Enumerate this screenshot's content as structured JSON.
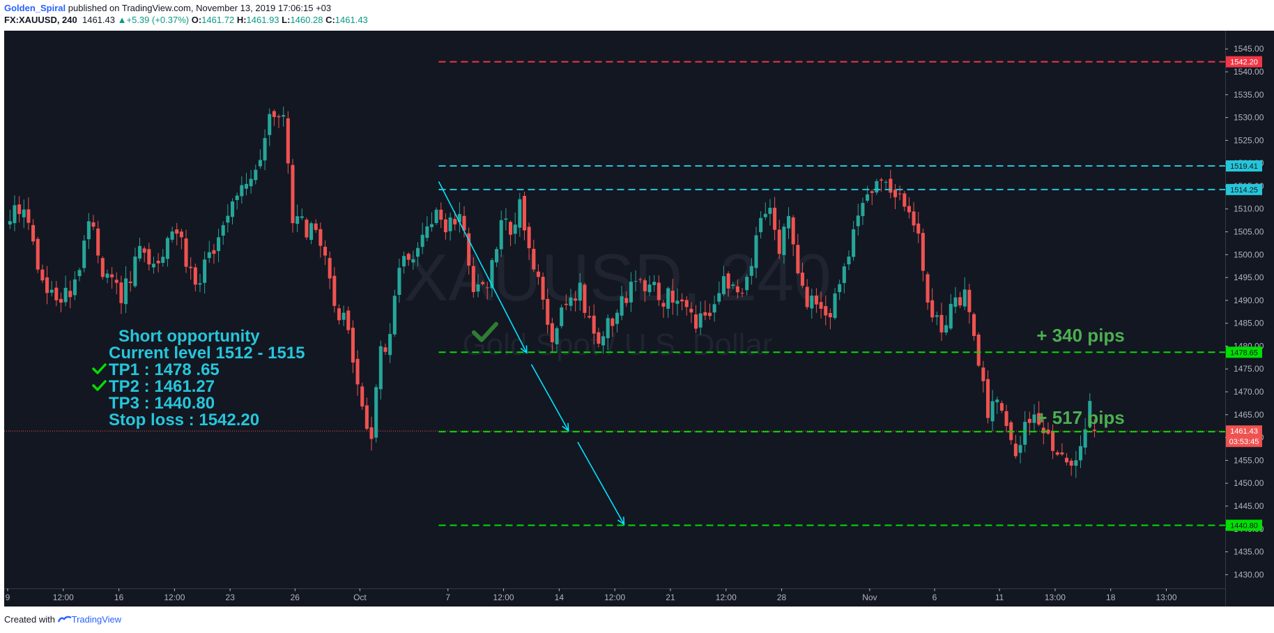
{
  "header": {
    "author": "Golden_Spiral",
    "published_text": "published on TradingView.com, November 13, 2019 17:06:15 +03",
    "symbol": "FX:XAUUSD, 240",
    "last": "1461.43",
    "change": "+5.39 (+0.37%)",
    "o_label": "O:",
    "o_value": "1461.72",
    "h_label": "H:",
    "h_value": "1461.93",
    "l_label": "L:",
    "l_value": "1460.28",
    "c_label": "C:",
    "c_value": "1461.43"
  },
  "footer": {
    "created_with": "Created with",
    "brand": "TradingView"
  },
  "colors": {
    "background": "#131722",
    "bull": "#26a69a",
    "bear": "#ef5350",
    "stop": "#f23645",
    "entry": "#26c6da",
    "target": "#00e000",
    "annotation_text": "#26c6da",
    "pips_text": "#4caf50",
    "arrow": "#00e5ff"
  },
  "chart_data": {
    "type": "candlestick",
    "symbol": "XAUUSD",
    "timeframe": "240",
    "watermark_symbol": "XAUUSD, 240",
    "watermark_name": "Gold Spot / U.S. Dollar",
    "ylim": [
      1427,
      1549
    ],
    "y_ticks": [
      1430,
      1435,
      1440,
      1445,
      1450,
      1455,
      1460,
      1465,
      1470,
      1475,
      1480,
      1485,
      1490,
      1495,
      1500,
      1505,
      1510,
      1515,
      1520,
      1525,
      1530,
      1535,
      1540,
      1545
    ],
    "x_ticks": [
      {
        "label": "9",
        "bar": 0
      },
      {
        "label": "12:00",
        "bar": 12
      },
      {
        "label": "16",
        "bar": 24
      },
      {
        "label": "12:00",
        "bar": 36
      },
      {
        "label": "23",
        "bar": 48
      },
      {
        "label": "26",
        "bar": 62
      },
      {
        "label": "Oct",
        "bar": 76
      },
      {
        "label": "7",
        "bar": 95
      },
      {
        "label": "12:00",
        "bar": 107
      },
      {
        "label": "14",
        "bar": 119
      },
      {
        "label": "12:00",
        "bar": 131
      },
      {
        "label": "21",
        "bar": 143
      },
      {
        "label": "12:00",
        "bar": 155
      },
      {
        "label": "28",
        "bar": 167
      },
      {
        "label": "Nov",
        "bar": 186
      },
      {
        "label": "6",
        "bar": 200
      },
      {
        "label": "11",
        "bar": 214
      },
      {
        "label": "13:00",
        "bar": 226
      },
      {
        "label": "18",
        "bar": 238
      },
      {
        "label": "13:00",
        "bar": 250
      }
    ],
    "price_path": [
      [
        0,
        1508
      ],
      [
        3,
        1511
      ],
      [
        6,
        1496
      ],
      [
        10,
        1489
      ],
      [
        14,
        1493
      ],
      [
        17,
        1509
      ],
      [
        20,
        1497
      ],
      [
        24,
        1491
      ],
      [
        28,
        1501
      ],
      [
        32,
        1499
      ],
      [
        36,
        1506
      ],
      [
        40,
        1493
      ],
      [
        44,
        1502
      ],
      [
        48,
        1510
      ],
      [
        51,
        1517
      ],
      [
        54,
        1522
      ],
      [
        56,
        1533
      ],
      [
        59,
        1531
      ],
      [
        61,
        1507
      ],
      [
        64,
        1506
      ],
      [
        67,
        1502
      ],
      [
        70,
        1490
      ],
      [
        73,
        1483
      ],
      [
        76,
        1467
      ],
      [
        78,
        1460
      ],
      [
        80,
        1478
      ],
      [
        82,
        1482
      ],
      [
        84,
        1498
      ],
      [
        87,
        1501
      ],
      [
        90,
        1506
      ],
      [
        92,
        1510
      ],
      [
        94,
        1507
      ],
      [
        97,
        1509
      ],
      [
        100,
        1494
      ],
      [
        103,
        1492
      ],
      [
        106,
        1506
      ],
      [
        108,
        1506
      ],
      [
        110,
        1511
      ],
      [
        114,
        1494
      ],
      [
        117,
        1483
      ],
      [
        120,
        1489
      ],
      [
        123,
        1493
      ],
      [
        126,
        1481
      ],
      [
        129,
        1484
      ],
      [
        132,
        1490
      ],
      [
        136,
        1495
      ],
      [
        140,
        1491
      ],
      [
        144,
        1490
      ],
      [
        148,
        1484
      ],
      [
        151,
        1487
      ],
      [
        154,
        1494
      ],
      [
        158,
        1490
      ],
      [
        161,
        1503
      ],
      [
        164,
        1512
      ],
      [
        166,
        1502
      ],
      [
        168,
        1507
      ],
      [
        171,
        1491
      ],
      [
        174,
        1489
      ],
      [
        177,
        1487
      ],
      [
        179,
        1493
      ],
      [
        182,
        1504
      ],
      [
        185,
        1513
      ],
      [
        188,
        1515
      ],
      [
        191,
        1514
      ],
      [
        194,
        1511
      ],
      [
        196,
        1505
      ],
      [
        198,
        1488
      ],
      [
        201,
        1483
      ],
      [
        203,
        1489
      ],
      [
        206,
        1491
      ],
      [
        208,
        1483
      ],
      [
        211,
        1466
      ],
      [
        214,
        1467
      ],
      [
        217,
        1458
      ],
      [
        220,
        1465
      ],
      [
        223,
        1460
      ],
      [
        226,
        1456
      ],
      [
        229,
        1452
      ],
      [
        231,
        1458
      ],
      [
        233,
        1466
      ],
      [
        234,
        1461.43
      ]
    ],
    "horizontal_levels": [
      {
        "name": "Stop loss",
        "price": 1542.2,
        "label": "1542.20",
        "color": "#f23645"
      },
      {
        "name": "Entry high",
        "price": 1519.41,
        "label": "1519.41",
        "color": "#26c6da"
      },
      {
        "name": "Entry low",
        "price": 1514.25,
        "label": "1514.25",
        "color": "#26c6da"
      },
      {
        "name": "TP1",
        "price": 1478.65,
        "label": "1478.65",
        "color": "#00e000"
      },
      {
        "name": "TP2",
        "price": 1461.27,
        "label": "1461.27",
        "color": "#00e000"
      },
      {
        "name": "TP3",
        "price": 1440.8,
        "label": "1440.80",
        "color": "#00e000"
      }
    ],
    "last_price": {
      "price": 1461.43,
      "label": "1461.43",
      "countdown": "03:53:45"
    },
    "levels_start_bar": 93,
    "trend_arrows": [
      {
        "from": [
          93,
          1516
        ],
        "to": [
          112,
          1478.5
        ]
      },
      {
        "from": [
          113,
          1476
        ],
        "to": [
          121,
          1461.5
        ]
      },
      {
        "from": [
          123,
          1459
        ],
        "to": [
          133,
          1441
        ]
      }
    ],
    "pip_labels": [
      {
        "text": "+ 340  pips",
        "bar": 222,
        "price": 1481
      },
      {
        "text": "+ 517 pips",
        "bar": 222,
        "price": 1463
      }
    ],
    "annotation": {
      "title": "Short opportunity",
      "lines": [
        "Current level 1512 - 1515",
        "TP1 : 1478 .65",
        "TP2 : 1461.27",
        "TP3 : 1440.80",
        "Stop loss : 1542.20"
      ],
      "checked": [
        false,
        true,
        true,
        false,
        false
      ]
    }
  }
}
